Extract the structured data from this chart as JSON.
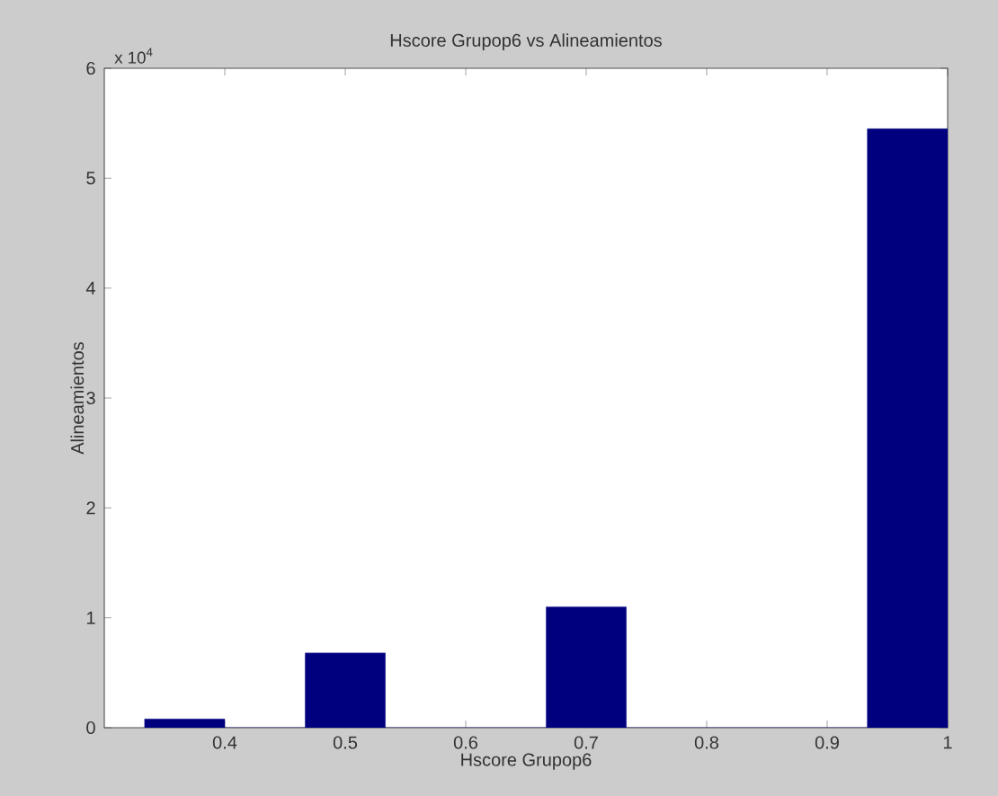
{
  "chart_data": {
    "type": "histogram",
    "title": "Hscore Grupop6 vs Alineamientos",
    "xlabel": "Hscore Grupop6",
    "ylabel": "Alineamientos",
    "bins": [
      0.3333,
      0.4,
      0.4667,
      0.5333,
      0.6,
      0.6667,
      0.7333,
      0.8,
      0.8667,
      0.9333,
      1.0
    ],
    "values": [
      0.08,
      0,
      0.68,
      0,
      0,
      1.1,
      0,
      0,
      0,
      5.45
    ],
    "color": "#00007f",
    "xlim": [
      0.3,
      1.0
    ],
    "xticks": [
      0.4,
      0.5,
      0.6,
      0.7,
      0.8,
      0.9,
      1
    ],
    "ylim": [
      0,
      6
    ],
    "yticks": [
      0,
      1,
      2,
      3,
      4,
      5,
      6
    ],
    "annotations": [
      "x 10$^{4}$"
    ],
    "grid": false
  }
}
